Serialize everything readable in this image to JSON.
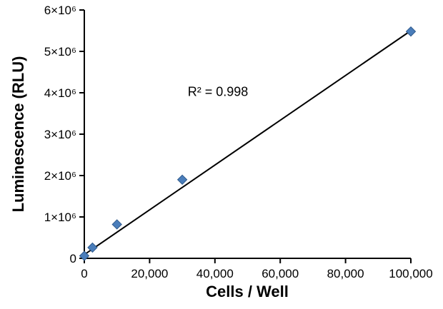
{
  "chart_data": {
    "type": "scatter",
    "title": "",
    "xlabel": "Cells / Well",
    "ylabel": "Luminescence (RLU)",
    "annotation": "R² = 0.998",
    "xlim": [
      0,
      100000
    ],
    "ylim": [
      0,
      6000000
    ],
    "grid": false,
    "legend": false,
    "x_ticks": [
      {
        "value": 0,
        "label": "0"
      },
      {
        "value": 20000,
        "label": "20,000"
      },
      {
        "value": 40000,
        "label": "40,000"
      },
      {
        "value": 60000,
        "label": "60,000"
      },
      {
        "value": 80000,
        "label": "80,000"
      },
      {
        "value": 100000,
        "label": "100,000"
      }
    ],
    "y_ticks": [
      {
        "value": 0,
        "label": "0"
      },
      {
        "value": 1000000,
        "label": "1×10⁶"
      },
      {
        "value": 2000000,
        "label": "2×10⁶"
      },
      {
        "value": 3000000,
        "label": "3×10⁶"
      },
      {
        "value": 4000000,
        "label": "4×10⁶"
      },
      {
        "value": 5000000,
        "label": "5×10⁶"
      },
      {
        "value": 6000000,
        "label": "6×10⁶"
      }
    ],
    "series": [
      {
        "name": "Luminescence",
        "marker": "diamond",
        "color": "#4a7dba",
        "edge_color": "#2f5a8c",
        "points": [
          [
            0,
            60000
          ],
          [
            2500,
            260000
          ],
          [
            10000,
            820000
          ],
          [
            30000,
            1900000
          ],
          [
            100000,
            5480000
          ]
        ]
      }
    ],
    "trendline": {
      "color": "#000000",
      "x1": 0,
      "y1": 90000,
      "x2": 100000,
      "y2": 5500000
    }
  }
}
